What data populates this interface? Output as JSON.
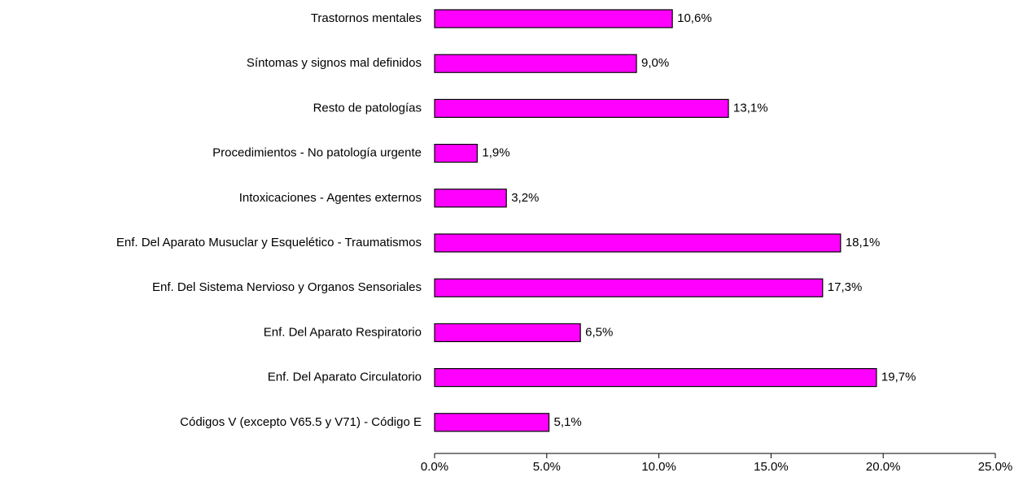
{
  "chart_data": {
    "type": "bar",
    "orientation": "horizontal",
    "categories": [
      "Trastornos mentales",
      "Síntomas y signos mal definidos",
      "Resto de patologías",
      "Procedimientos - No patología urgente",
      "Intoxicaciones - Agentes externos",
      "Enf. Del Aparato Musuclar y Esquelético - Traumatismos",
      "Enf. Del Sistema Nervioso y Organos Sensoriales",
      "Enf. Del Aparato Respiratorio",
      "Enf. Del Aparato Circulatorio",
      "Códigos V (excepto V65.5 y V71) - Código E"
    ],
    "values": [
      10.6,
      9.0,
      13.1,
      1.9,
      3.2,
      18.1,
      17.3,
      6.5,
      19.7,
      5.1
    ],
    "value_labels": [
      "10,6%",
      "9,0%",
      "13,1%",
      "1,9%",
      "3,2%",
      "18,1%",
      "17,3%",
      "6,5%",
      "19,7%",
      "5,1%"
    ],
    "color": "#ff00ff",
    "xlim": [
      0,
      25
    ],
    "xticks": [
      {
        "value": 0,
        "label": "0.0%"
      },
      {
        "value": 5,
        "label": "5.0%"
      },
      {
        "value": 10,
        "label": "10.0%"
      },
      {
        "value": 15,
        "label": "15.0%"
      },
      {
        "value": 20,
        "label": "20.0%"
      },
      {
        "value": 25,
        "label": "25.0%"
      }
    ],
    "grid": false
  }
}
